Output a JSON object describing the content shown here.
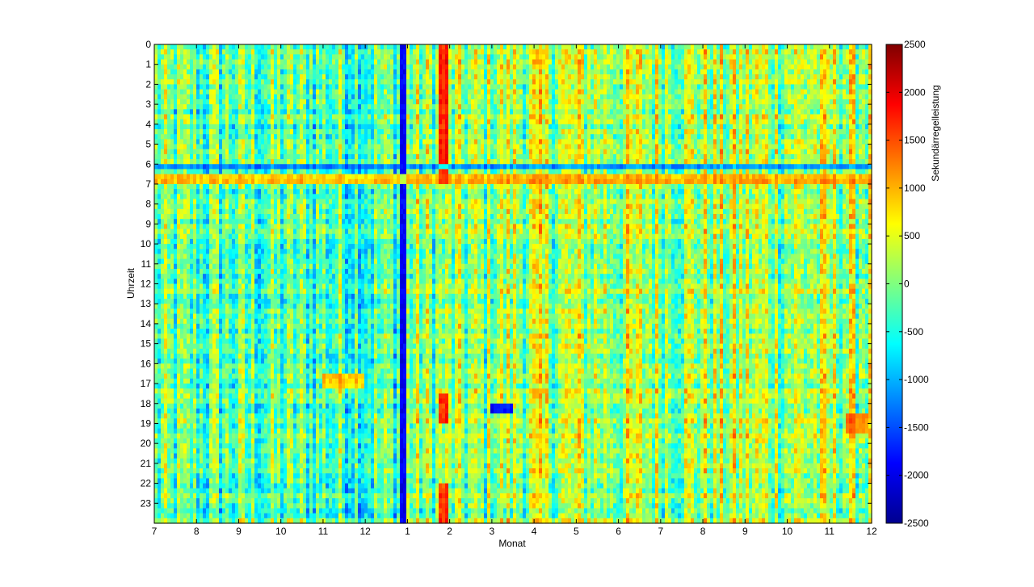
{
  "chart_data": {
    "type": "heatmap",
    "title": "",
    "xlabel": "Monat",
    "ylabel": "Uhrzeit",
    "x_ticks": [
      "7",
      "8",
      "9",
      "10",
      "11",
      "12",
      "1",
      "2",
      "3",
      "4",
      "5",
      "6",
      "7",
      "8",
      "9",
      "10",
      "11",
      "12"
    ],
    "y_ticks": [
      "0",
      "1",
      "2",
      "3",
      "4",
      "5",
      "6",
      "7",
      "8",
      "9",
      "10",
      "11",
      "12",
      "13",
      "14",
      "15",
      "16",
      "17",
      "18",
      "19",
      "20",
      "21",
      "22",
      "23"
    ],
    "colorbar": {
      "label": "Sekundärregelleistung",
      "min": -2500,
      "max": 2500,
      "ticks": [
        "2500",
        "2000",
        "1500",
        "1000",
        "500",
        "0",
        "-500",
        "-1000",
        "-1500",
        "-2000",
        "-2500"
      ],
      "colormap": "jet"
    },
    "features": [
      {
        "x": [
          5.8,
          6.0
        ],
        "y": [
          0,
          24
        ],
        "level": -2300
      },
      {
        "x": [
          6.75,
          7.0
        ],
        "y": [
          0,
          7
        ],
        "level": 2100
      },
      {
        "x": [
          6.75,
          7.0
        ],
        "y": [
          17.5,
          19
        ],
        "level": 2000
      },
      {
        "x": [
          6.75,
          7.0
        ],
        "y": [
          22,
          24
        ],
        "level": 2000
      },
      {
        "x": [
          0,
          17
        ],
        "y": [
          6.6,
          7.0
        ],
        "level": 1200
      },
      {
        "x": [
          0,
          17
        ],
        "y": [
          6.0,
          6.3
        ],
        "level": -1400
      },
      {
        "x": [
          8.0,
          8.5
        ],
        "y": [
          17.9,
          18.6
        ],
        "level": -2200
      },
      {
        "x": [
          4.0,
          5.0
        ],
        "y": [
          16.6,
          17.2
        ],
        "level": 1300
      },
      {
        "x": [
          16.4,
          16.9
        ],
        "y": [
          18.6,
          19.4
        ],
        "level": 1500
      }
    ]
  }
}
